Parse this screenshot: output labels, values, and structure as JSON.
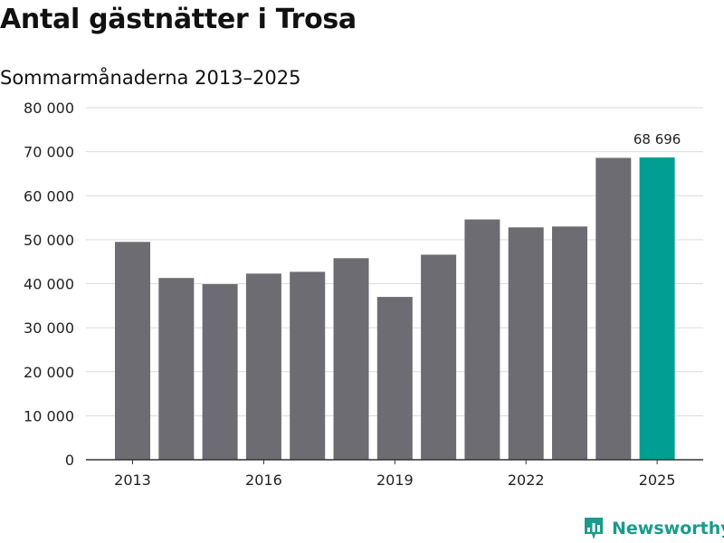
{
  "title": "Antal gästnätter i Trosa",
  "subtitle": "Sommarmånaderna 2013–2025",
  "brand": "Newsworthy",
  "colors": {
    "bar": "#6d6c72",
    "highlight": "#009e93",
    "grid": "#dcdcdc",
    "axis": "#333333",
    "brand": "#1a9b8c"
  },
  "chart_data": {
    "type": "bar",
    "categories": [
      "2013",
      "2014",
      "2015",
      "2016",
      "2017",
      "2018",
      "2019",
      "2020",
      "2021",
      "2022",
      "2023",
      "2024",
      "2025"
    ],
    "values": [
      49500,
      41300,
      39900,
      42300,
      42700,
      45800,
      37000,
      46600,
      54600,
      52800,
      53000,
      68600,
      68696
    ],
    "x_tick_labels": [
      "2013",
      "2016",
      "2019",
      "2022",
      "2025"
    ],
    "y_tick_labels": [
      "0",
      "10 000",
      "20 000",
      "30 000",
      "40 000",
      "50 000",
      "60 000",
      "70 000",
      "80 000"
    ],
    "y_ticks": [
      0,
      10000,
      20000,
      30000,
      40000,
      50000,
      60000,
      70000,
      80000
    ],
    "ylim": [
      0,
      80000
    ],
    "highlight_index": 12,
    "data_labels": [
      {
        "index": 12,
        "text": "68 696"
      }
    ],
    "grid": true,
    "xlabel": "",
    "ylabel": ""
  }
}
